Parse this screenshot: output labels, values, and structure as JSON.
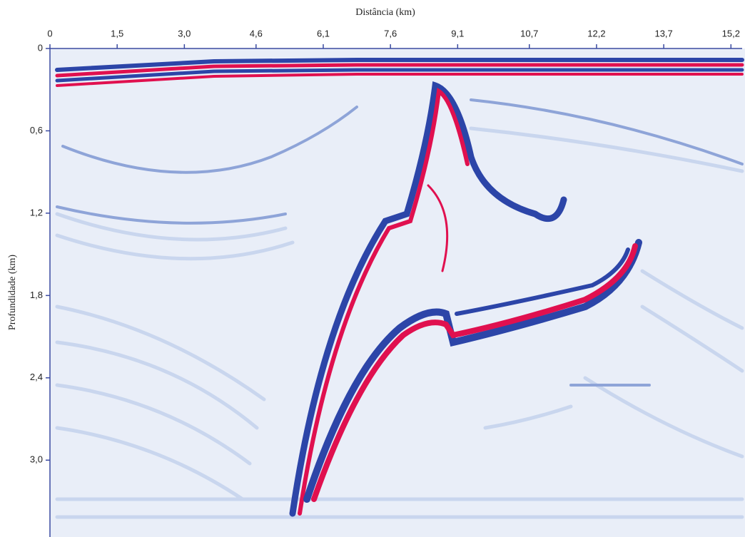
{
  "chart_data": {
    "type": "image",
    "title": "Distância (km)",
    "y_label": "Profundidade (km)",
    "xlim": [
      0,
      15.45
    ],
    "ylim": [
      0,
      3.56
    ],
    "y_inverted": true,
    "axis_color": "#3a4aa0",
    "xticks": [
      0,
      {
        "value": 1.5,
        "label": "1,5"
      },
      {
        "value": 3.0,
        "label": "3,0"
      },
      {
        "value": 4.6,
        "label": "4,6"
      },
      {
        "value": 6.1,
        "label": "6,1"
      },
      {
        "value": 7.6,
        "label": "7,6"
      },
      {
        "value": 9.1,
        "label": "9,1"
      },
      {
        "value": 10.7,
        "label": "10,7"
      },
      {
        "value": 12.2,
        "label": "12,2"
      },
      {
        "value": 13.7,
        "label": "13,7"
      },
      {
        "value": 15.2,
        "label": "15,2"
      }
    ],
    "yticks": [
      0,
      {
        "value": 0.6,
        "label": "0,6"
      },
      {
        "value": 1.2,
        "label": "1,2"
      },
      {
        "value": 1.8,
        "label": "1,8"
      },
      {
        "value": 2.4,
        "label": "2,4"
      },
      {
        "value": 3.0,
        "label": "3,0"
      }
    ]
  }
}
